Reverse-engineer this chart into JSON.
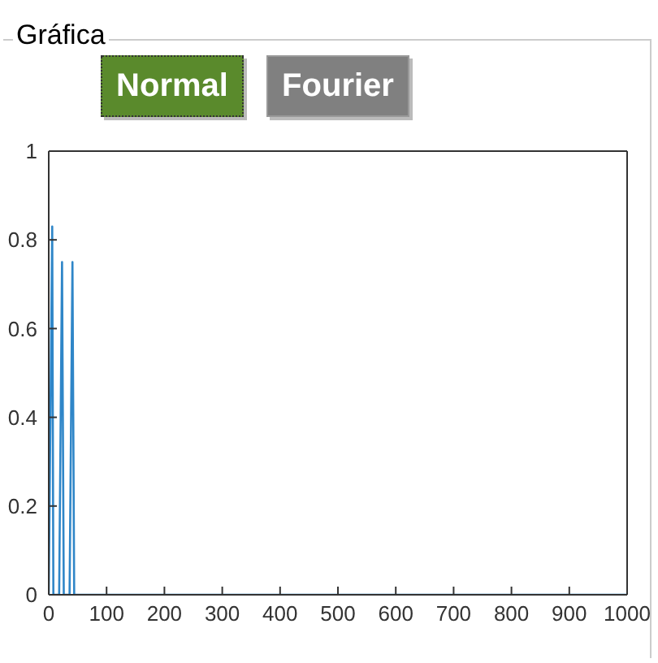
{
  "chart_data": {
    "type": "line",
    "title": "Gráfica",
    "annotations": [
      "Normal",
      "Fourier"
    ],
    "series": [
      {
        "color": "#2f86c8",
        "x": [
          0,
          6,
          8,
          16,
          18,
          23,
          26,
          34,
          36,
          41,
          44,
          46,
          1000
        ],
        "values": [
          0,
          0.83,
          0,
          0,
          0,
          0.75,
          0,
          0,
          0,
          0.75,
          0,
          0,
          0
        ]
      }
    ],
    "xlim": [
      0,
      1000
    ],
    "xticks": [
      0,
      100,
      200,
      300,
      400,
      500,
      600,
      700,
      800,
      900,
      1000
    ],
    "ylim": [
      0,
      1
    ],
    "yticks": [
      0,
      0.2,
      0.4,
      0.6,
      0.8,
      1
    ],
    "grid": false,
    "legend": false,
    "marker": "none",
    "line_style": "solid"
  }
}
